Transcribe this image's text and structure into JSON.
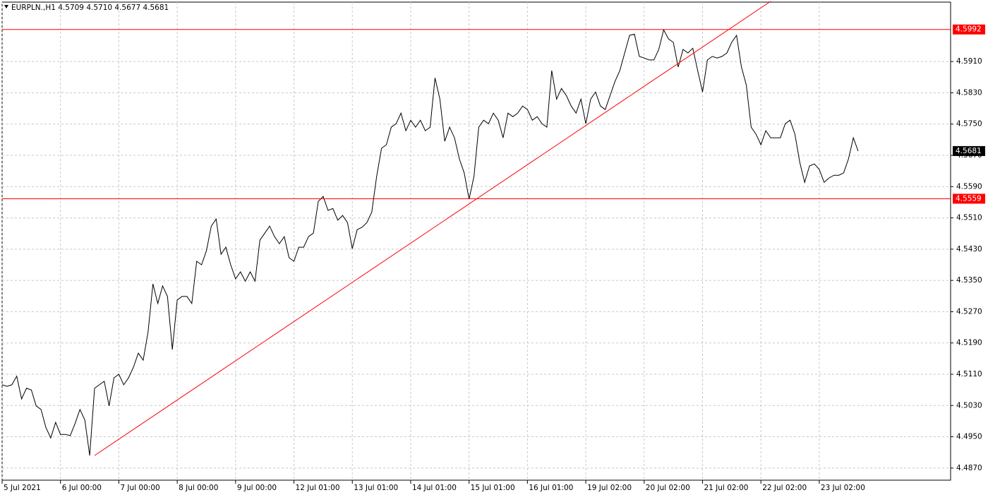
{
  "chart_data": {
    "type": "line",
    "title": "EURPLN.,H1  4.5709 4.5710 4.5677 4.5681",
    "series": [
      {
        "name": "EURPLN",
        "color": "#000000",
        "values": [
          4.5083,
          4.5079,
          4.5083,
          4.5105,
          4.5047,
          4.5074,
          4.507,
          4.5029,
          4.502,
          4.4974,
          4.4947,
          4.4987,
          4.4956,
          4.4956,
          4.4953,
          4.4984,
          4.502,
          4.4993,
          4.4902,
          4.5074,
          4.5083,
          4.5092,
          4.5029,
          4.5101,
          4.511,
          4.5083,
          4.5101,
          4.5128,
          4.5164,
          4.5146,
          4.5218,
          4.5341,
          4.5291,
          4.5336,
          4.5309,
          4.5173,
          4.53,
          4.5309,
          4.5309,
          4.5291,
          4.5399,
          4.539,
          4.5426,
          4.5489,
          4.5507,
          4.5417,
          4.5435,
          4.539,
          4.5354,
          4.5372,
          4.5348,
          4.5372,
          4.5348,
          4.5453,
          4.5471,
          4.5489,
          4.5462,
          4.5444,
          4.5462,
          4.5408,
          4.5399,
          4.5435,
          4.5435,
          4.5462,
          4.5471,
          4.5552,
          4.5565,
          4.5529,
          4.5534,
          4.5504,
          4.5516,
          4.5498,
          4.5431,
          4.548,
          4.5486,
          4.5498,
          4.5525,
          4.5616,
          4.5688,
          4.5697,
          4.5742,
          4.5751,
          4.5778,
          4.5733,
          4.576,
          4.5742,
          4.576,
          4.5733,
          4.5742,
          4.5868,
          4.5814,
          4.5706,
          4.5742,
          4.5715,
          4.5661,
          4.5625,
          4.5558,
          4.5616,
          4.5742,
          4.576,
          4.5751,
          4.5778,
          4.576,
          4.5715,
          4.5778,
          4.5769,
          4.5778,
          4.5796,
          4.5787,
          4.576,
          4.5769,
          4.5751,
          4.5742,
          4.5887,
          4.5814,
          4.5841,
          4.5823,
          4.5796,
          4.5778,
          4.5814,
          4.5751,
          4.5814,
          4.5832,
          4.5796,
          4.5787,
          4.5823,
          4.5859,
          4.5887,
          4.5932,
          4.5977,
          4.598,
          4.5923,
          4.5919,
          4.5914,
          4.5914,
          4.5941,
          4.5991,
          4.5968,
          4.5959,
          4.5896,
          4.5941,
          4.5932,
          4.5944,
          4.5887,
          4.5832,
          4.5914,
          4.5923,
          4.5919,
          4.5923,
          4.5932,
          4.5959,
          4.5977,
          4.5896,
          4.585,
          4.5742,
          4.5724,
          4.5697,
          4.5733,
          4.5715,
          4.5715,
          4.5715,
          4.5751,
          4.576,
          4.5724,
          4.5652,
          4.5601,
          4.5643,
          4.5648,
          4.5634,
          4.5601,
          4.5612,
          4.5619,
          4.5619,
          4.5625,
          4.5661,
          4.5715,
          4.5681
        ]
      }
    ],
    "xlim": [
      0,
      195
    ],
    "xticks": [
      {
        "value": 0,
        "label": "5 Jul 2021"
      },
      {
        "value": 12,
        "label": "6 Jul 00:00"
      },
      {
        "value": 24,
        "label": "7 Jul 00:00"
      },
      {
        "value": 36,
        "label": "8 Jul 00:00"
      },
      {
        "value": 48,
        "label": "9 Jul 00:00"
      },
      {
        "value": 60,
        "label": "12 Jul 01:00"
      },
      {
        "value": 72,
        "label": "13 Jul 01:00"
      },
      {
        "value": 84,
        "label": "14 Jul 01:00"
      },
      {
        "value": 96,
        "label": "15 Jul 01:00"
      },
      {
        "value": 108,
        "label": "16 Jul 01:00"
      },
      {
        "value": 120,
        "label": "19 Jul 02:00"
      },
      {
        "value": 132,
        "label": "20 Jul 02:00"
      },
      {
        "value": 144,
        "label": "21 Jul 02:00"
      },
      {
        "value": 156,
        "label": "22 Jul 02:00"
      },
      {
        "value": 168,
        "label": "23 Jul 02:00"
      }
    ],
    "ylim": [
      4.4839,
      4.6062
    ],
    "yticks": [
      {
        "value": 4.591,
        "label": "4.5910"
      },
      {
        "value": 4.583,
        "label": "4.5830"
      },
      {
        "value": 4.575,
        "label": "4.5750"
      },
      {
        "value": 4.567,
        "label": "4.5670"
      },
      {
        "value": 4.559,
        "label": "4.5590"
      },
      {
        "value": 4.551,
        "label": "4.5510"
      },
      {
        "value": 4.543,
        "label": "4.5430"
      },
      {
        "value": 4.535,
        "label": "4.5350"
      },
      {
        "value": 4.527,
        "label": "4.5270"
      },
      {
        "value": 4.519,
        "label": "4.5190"
      },
      {
        "value": 4.511,
        "label": "4.5110"
      },
      {
        "value": 4.503,
        "label": "4.5030"
      },
      {
        "value": 4.495,
        "label": "4.4950"
      },
      {
        "value": 4.487,
        "label": "4.4870"
      }
    ],
    "grid": true,
    "levels": [
      {
        "value": 4.5992,
        "color": "#ff0000"
      },
      {
        "value": 4.5559,
        "color": "#ff0000"
      }
    ],
    "last_price": 4.5681,
    "trendline": {
      "x": [
        19,
        158
      ],
      "y": [
        4.4902,
        4.6064
      ],
      "color": "#ff0000"
    }
  }
}
